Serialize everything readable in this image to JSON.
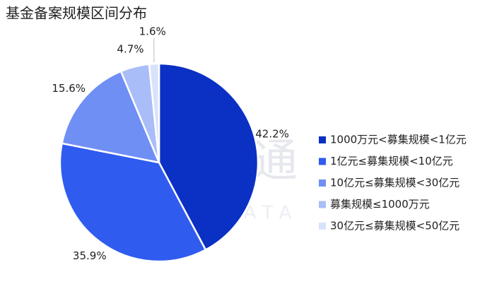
{
  "chart_data": {
    "type": "pie",
    "title": "基金备案规模区间分布",
    "watermark": "私募通",
    "watermark_sub": "P E D A T A",
    "categories": [
      "1000万元<募集规模<1亿元",
      "1亿元≤募集规模<10亿元",
      "10亿元≤募集规模<30亿元",
      "募集规模≤1000万元",
      "30亿元≤募集规模<50亿元"
    ],
    "values": [
      42.2,
      35.9,
      15.6,
      4.7,
      1.6
    ],
    "value_labels": [
      "42.2%",
      "35.9%",
      "15.6%",
      "4.7%",
      "1.6%"
    ],
    "colors": [
      "#0b30c4",
      "#2f5bef",
      "#6f8ff4",
      "#a9bdf8",
      "#d9e2fb"
    ],
    "legend": "right"
  }
}
